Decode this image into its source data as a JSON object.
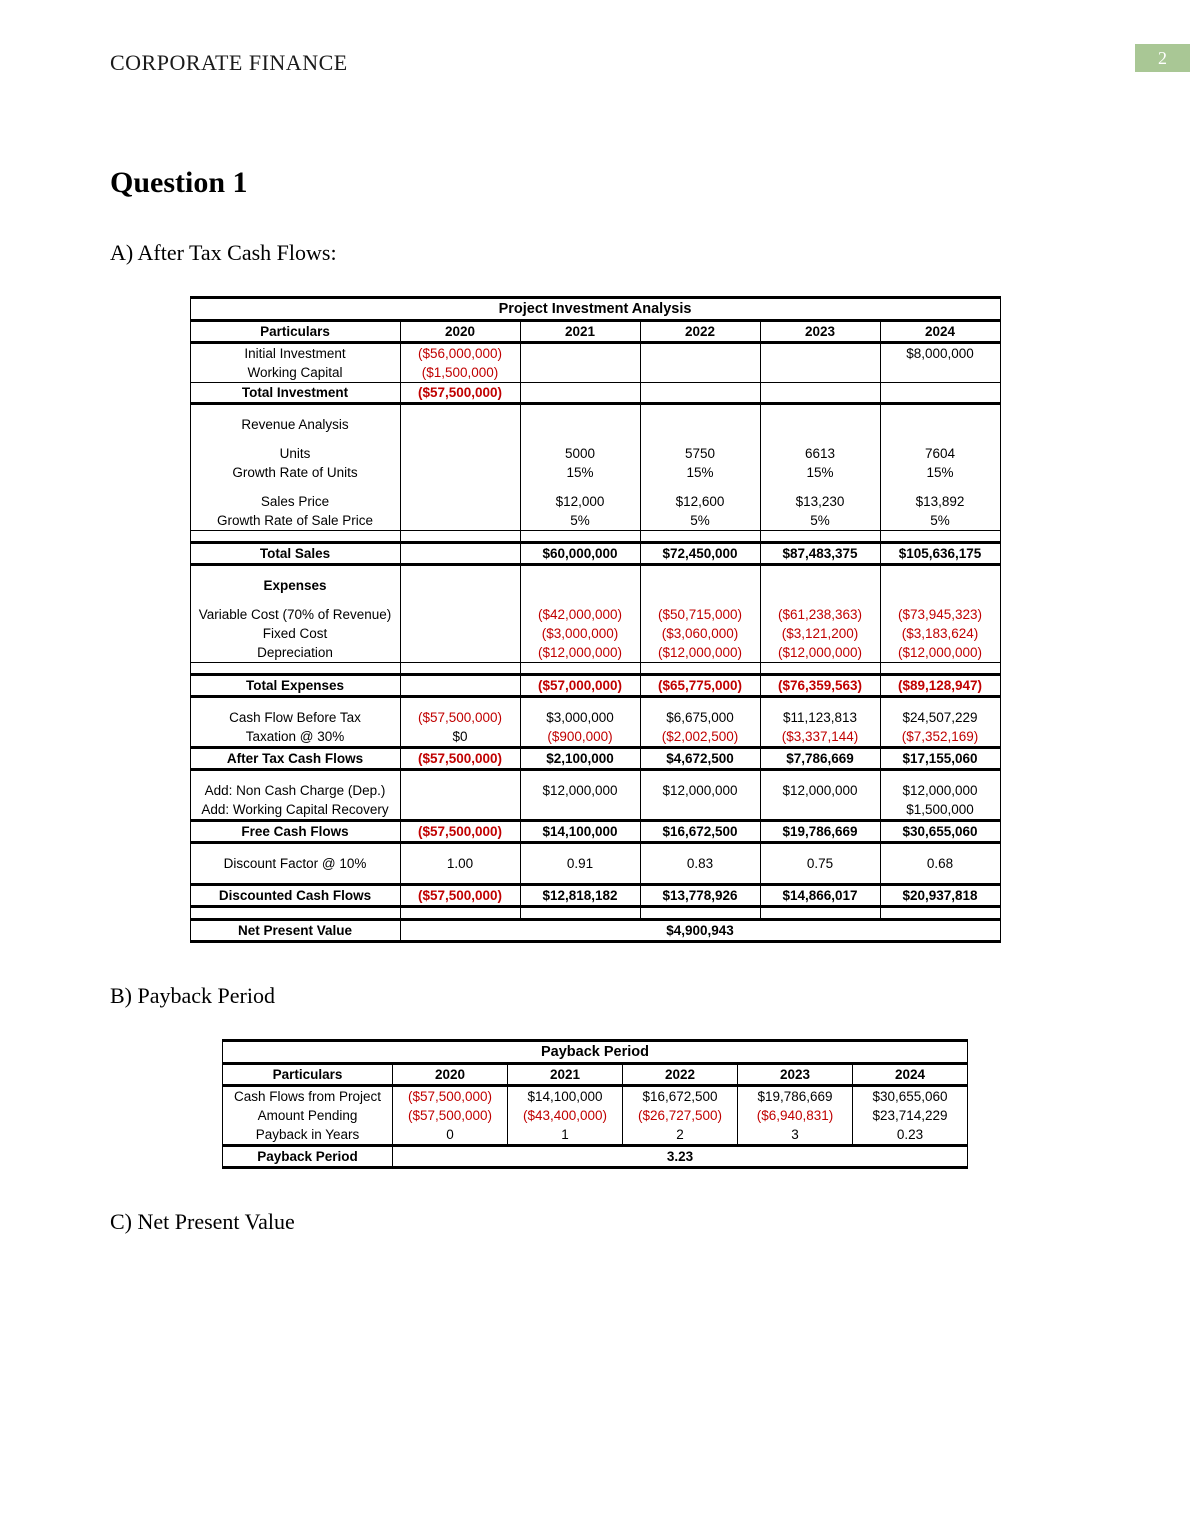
{
  "header": {
    "running": "CORPORATE FINANCE",
    "page_number": "2"
  },
  "headings": {
    "question": "Question 1",
    "subA": "A) After Tax Cash Flows:",
    "subB": "B) Payback Period",
    "subC": "C) Net Present Value"
  },
  "colors": {
    "negative": "#c00000",
    "page_badge_bg": "#a9c795",
    "page_badge_fg": "#ffffff"
  },
  "main_table": {
    "title": "Project Investment Analysis",
    "years": [
      "2020",
      "2021",
      "2022",
      "2023",
      "2024"
    ],
    "particulars_header": "Particulars",
    "rows": {
      "initial_investment": {
        "label": "Initial Investment",
        "vals": [
          "($56,000,000)",
          "",
          "",
          "",
          "$8,000,000"
        ],
        "neg": [
          true,
          false,
          false,
          false,
          false
        ]
      },
      "working_capital": {
        "label": "Working Capital",
        "vals": [
          "($1,500,000)",
          "",
          "",
          "",
          ""
        ],
        "neg": [
          true,
          false,
          false,
          false,
          false
        ]
      },
      "total_investment": {
        "label": "Total Investment",
        "vals": [
          "($57,500,000)",
          "",
          "",
          "",
          ""
        ],
        "neg": [
          true,
          false,
          false,
          false,
          false
        ]
      },
      "revenue_analysis": {
        "label": "Revenue Analysis"
      },
      "units": {
        "label": "Units",
        "vals": [
          "",
          "5000",
          "5750",
          "6613",
          "7604"
        ]
      },
      "growth_units": {
        "label": "Growth Rate of Units",
        "vals": [
          "",
          "15%",
          "15%",
          "15%",
          "15%"
        ]
      },
      "sales_price": {
        "label": "Sales Price",
        "vals": [
          "",
          "$12,000",
          "$12,600",
          "$13,230",
          "$13,892"
        ]
      },
      "growth_price": {
        "label": "Growth Rate of Sale Price",
        "vals": [
          "",
          "5%",
          "5%",
          "5%",
          "5%"
        ]
      },
      "total_sales": {
        "label": "Total Sales",
        "vals": [
          "",
          "$60,000,000",
          "$72,450,000",
          "$87,483,375",
          "$105,636,175"
        ]
      },
      "expenses": {
        "label": "Expenses"
      },
      "var_cost": {
        "label": "Variable Cost (70% of Revenue)",
        "vals": [
          "",
          "($42,000,000)",
          "($50,715,000)",
          "($61,238,363)",
          "($73,945,323)"
        ],
        "neg": [
          false,
          true,
          true,
          true,
          true
        ]
      },
      "fixed_cost": {
        "label": "Fixed Cost",
        "vals": [
          "",
          "($3,000,000)",
          "($3,060,000)",
          "($3,121,200)",
          "($3,183,624)"
        ],
        "neg": [
          false,
          true,
          true,
          true,
          true
        ]
      },
      "depreciation": {
        "label": "Depreciation",
        "vals": [
          "",
          "($12,000,000)",
          "($12,000,000)",
          "($12,000,000)",
          "($12,000,000)"
        ],
        "neg": [
          false,
          true,
          true,
          true,
          true
        ]
      },
      "total_expenses": {
        "label": "Total Expenses",
        "vals": [
          "",
          "($57,000,000)",
          "($65,775,000)",
          "($76,359,563)",
          "($89,128,947)"
        ],
        "neg": [
          false,
          true,
          true,
          true,
          true
        ]
      },
      "cf_before_tax": {
        "label": "Cash Flow Before Tax",
        "vals": [
          "($57,500,000)",
          "$3,000,000",
          "$6,675,000",
          "$11,123,813",
          "$24,507,229"
        ],
        "neg": [
          true,
          false,
          false,
          false,
          false
        ]
      },
      "taxation": {
        "label": "Taxation @ 30%",
        "vals": [
          "$0",
          "($900,000)",
          "($2,002,500)",
          "($3,337,144)",
          "($7,352,169)"
        ],
        "neg": [
          false,
          true,
          true,
          true,
          true
        ]
      },
      "after_tax_cf": {
        "label": "After Tax Cash Flows",
        "vals": [
          "($57,500,000)",
          "$2,100,000",
          "$4,672,500",
          "$7,786,669",
          "$17,155,060"
        ],
        "neg": [
          true,
          false,
          false,
          false,
          false
        ]
      },
      "add_dep": {
        "label": "Add: Non Cash Charge (Dep.)",
        "vals": [
          "",
          "$12,000,000",
          "$12,000,000",
          "$12,000,000",
          "$12,000,000"
        ]
      },
      "add_wc": {
        "label": "Add: Working Capital Recovery",
        "vals": [
          "",
          "",
          "",
          "",
          "$1,500,000"
        ]
      },
      "free_cf": {
        "label": "Free Cash Flows",
        "vals": [
          "($57,500,000)",
          "$14,100,000",
          "$16,672,500",
          "$19,786,669",
          "$30,655,060"
        ],
        "neg": [
          true,
          false,
          false,
          false,
          false
        ]
      },
      "discount_factor": {
        "label": "Discount Factor @ 10%",
        "vals": [
          "1.00",
          "0.91",
          "0.83",
          "0.75",
          "0.68"
        ]
      },
      "disc_cf": {
        "label": "Discounted Cash Flows",
        "vals": [
          "($57,500,000)",
          "$12,818,182",
          "$13,778,926",
          "$14,866,017",
          "$20,937,818"
        ],
        "neg": [
          true,
          false,
          false,
          false,
          false
        ]
      },
      "npv": {
        "label": "Net Present Value",
        "value": "$4,900,943"
      }
    }
  },
  "payback_table": {
    "title": "Payback Period",
    "years": [
      "2020",
      "2021",
      "2022",
      "2023",
      "2024"
    ],
    "particulars_header": "Particulars",
    "rows": {
      "cf_project": {
        "label": "Cash Flows from Project",
        "vals": [
          "($57,500,000)",
          "$14,100,000",
          "$16,672,500",
          "$19,786,669",
          "$30,655,060"
        ],
        "neg": [
          true,
          false,
          false,
          false,
          false
        ]
      },
      "amt_pending": {
        "label": "Amount Pending",
        "vals": [
          "($57,500,000)",
          "($43,400,000)",
          "($26,727,500)",
          "($6,940,831)",
          "$23,714,229"
        ],
        "neg": [
          true,
          true,
          true,
          true,
          false
        ]
      },
      "pb_years": {
        "label": "Payback in Years",
        "vals": [
          "0",
          "1",
          "2",
          "3",
          "0.23"
        ]
      },
      "pb_period": {
        "label": "Payback Period",
        "value": "3.23"
      }
    }
  }
}
